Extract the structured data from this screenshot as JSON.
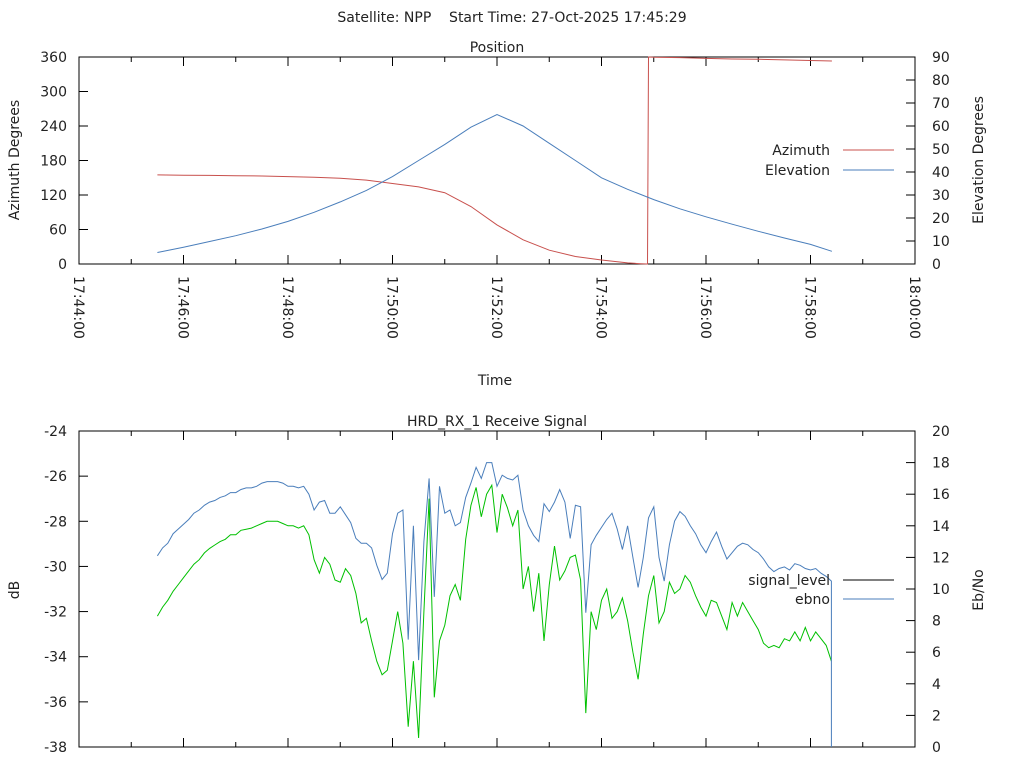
{
  "header": {
    "title": "Satellite: NPP    Start Time: 27-Oct-2025 17:45:29"
  },
  "colors": {
    "azimuth": "#c8504d",
    "elevation": "#4a7ebb",
    "signal_level_plot": "#00c000",
    "signal_level_legend": "#000000",
    "ebno": "#4a7ebb"
  },
  "chart_data": [
    {
      "type": "line",
      "title": "Position",
      "xlabel": "Time",
      "ylabel": "Azimuth Degrees",
      "y2label": "Elevation Degrees",
      "x_unit": "minutes after 17:44:00",
      "xlim": [
        0,
        16
      ],
      "ylim": [
        0,
        360
      ],
      "y2lim": [
        0,
        90
      ],
      "x_ticks": [
        "17:44:00",
        "17:46:00",
        "17:48:00",
        "17:50:00",
        "17:52:00",
        "17:54:00",
        "17:56:00",
        "17:58:00",
        "18:00:00"
      ],
      "y_ticks": [
        "0",
        "60",
        "120",
        "180",
        "240",
        "300",
        "360"
      ],
      "y2_ticks": [
        "0",
        "10",
        "20",
        "30",
        "40",
        "50",
        "60",
        "70",
        "80",
        "90"
      ],
      "legend": {
        "position": "right",
        "entries": [
          "Azimuth",
          "Elevation"
        ]
      },
      "series": [
        {
          "name": "Azimuth",
          "axis": "y",
          "x": [
            1.5,
            2,
            2.5,
            3,
            3.5,
            4,
            4.5,
            5,
            5.5,
            6,
            6.5,
            7,
            7.5,
            8,
            8.5,
            9,
            9.5,
            10,
            10.5,
            10.75,
            10.88,
            10.9,
            11,
            11.5,
            12,
            12.5,
            13,
            13.5,
            14,
            14.41
          ],
          "y": [
            155,
            154.5,
            154,
            153.5,
            153,
            152,
            151,
            149,
            146,
            140,
            134,
            124,
            100,
            68,
            42,
            24,
            13,
            7,
            2,
            0.5,
            0,
            360,
            359.5,
            359,
            357.5,
            356.5,
            356,
            355,
            354,
            353
          ]
        },
        {
          "name": "Elevation",
          "axis": "y2",
          "x": [
            1.5,
            2,
            2.5,
            3,
            3.5,
            4,
            4.5,
            5,
            5.5,
            6,
            6.5,
            7,
            7.5,
            8,
            8.5,
            9,
            9.5,
            10,
            10.5,
            11,
            11.5,
            12,
            12.5,
            13,
            13.5,
            14,
            14.41
          ],
          "y": [
            5,
            7.3,
            9.8,
            12.3,
            15.2,
            18.5,
            22.5,
            27,
            32,
            38,
            45,
            52,
            59.5,
            65,
            60,
            52.5,
            45,
            37.5,
            32.5,
            28,
            24,
            20.5,
            17.3,
            14.2,
            11.3,
            8.5,
            5.5
          ]
        }
      ]
    },
    {
      "type": "line",
      "title": "HRD_RX_1 Receive Signal",
      "xlabel": "",
      "ylabel": "dB",
      "y2label": "Eb/No",
      "x_unit": "minutes after 17:44:00",
      "xlim": [
        0,
        16
      ],
      "x_start": 1.5,
      "x_step": 0.1,
      "ylim": [
        -38,
        -24
      ],
      "y2lim": [
        0,
        20
      ],
      "y_ticks": [
        "-38",
        "-36",
        "-34",
        "-32",
        "-30",
        "-28",
        "-26",
        "-24"
      ],
      "y2_ticks": [
        "0",
        "2",
        "4",
        "6",
        "8",
        "10",
        "12",
        "14",
        "16",
        "18",
        "20"
      ],
      "legend": {
        "position": "right",
        "entries": [
          "signal_level",
          "ebno"
        ]
      },
      "series": [
        {
          "name": "signal_level",
          "axis": "y",
          "values": [
            -32.2,
            -31.8,
            -31.5,
            -31.1,
            -30.8,
            -30.5,
            -30.2,
            -29.9,
            -29.7,
            -29.4,
            -29.2,
            -29.05,
            -28.9,
            -28.8,
            -28.6,
            -28.6,
            -28.4,
            -28.35,
            -28.3,
            -28.2,
            -28.1,
            -28.0,
            -28.0,
            -28.0,
            -28.1,
            -28.2,
            -28.2,
            -28.3,
            -28.2,
            -28.6,
            -29.7,
            -30.3,
            -29.6,
            -29.9,
            -30.6,
            -30.7,
            -30.1,
            -30.4,
            -31.2,
            -32.5,
            -32.3,
            -33.3,
            -34.2,
            -34.8,
            -34.6,
            -33.3,
            -32.0,
            -33.4,
            -37.1,
            -34.2,
            -37.6,
            -32.0,
            -27.0,
            -35.8,
            -33.3,
            -32.6,
            -31.3,
            -30.8,
            -31.5,
            -28.8,
            -27.3,
            -26.5,
            -27.8,
            -26.8,
            -26.4,
            -28.5,
            -26.8,
            -27.4,
            -28.2,
            -27.5,
            -31.0,
            -30.0,
            -32.0,
            -30.3,
            -33.3,
            -30.8,
            -29.1,
            -30.6,
            -30.2,
            -29.6,
            -29.5,
            -30.6,
            -36.5,
            -32.0,
            -32.8,
            -31.5,
            -31.0,
            -32.3,
            -32.0,
            -31.4,
            -32.4,
            -33.8,
            -35.0,
            -33.0,
            -31.3,
            -30.4,
            -32.5,
            -32.0,
            -30.7,
            -31.2,
            -31.0,
            -30.4,
            -30.7,
            -31.3,
            -31.8,
            -32.2,
            -31.5,
            -31.6,
            -32.2,
            -32.8,
            -31.6,
            -32.2,
            -31.6,
            -32.0,
            -32.4,
            -32.8,
            -33.4,
            -33.6,
            -33.5,
            -33.6,
            -33.2,
            -33.3,
            -32.9,
            -33.3,
            -32.7,
            -33.3,
            -32.9,
            -33.2,
            -33.5,
            -34.2
          ]
        },
        {
          "name": "ebno",
          "axis": "y2",
          "values": [
            12.1,
            12.6,
            12.9,
            13.5,
            13.8,
            14.1,
            14.4,
            14.8,
            15.0,
            15.3,
            15.5,
            15.6,
            15.8,
            15.9,
            16.1,
            16.1,
            16.3,
            16.4,
            16.4,
            16.5,
            16.7,
            16.8,
            16.8,
            16.8,
            16.7,
            16.5,
            16.5,
            16.4,
            16.5,
            16.0,
            15.0,
            15.5,
            15.6,
            14.8,
            14.8,
            15.2,
            14.7,
            14.2,
            13.2,
            12.9,
            12.9,
            12.6,
            11.5,
            10.6,
            11.0,
            13.5,
            14.8,
            15.0,
            6.8,
            14.0,
            5.5,
            13.0,
            17.0,
            9.5,
            16.5,
            14.8,
            15.0,
            14.0,
            14.2,
            15.8,
            16.7,
            17.7,
            17.0,
            18.0,
            18.0,
            16.5,
            17.2,
            17.0,
            16.9,
            17.2,
            15.0,
            14.0,
            13.4,
            13.0,
            15.4,
            14.9,
            15.5,
            16.3,
            15.5,
            13.2,
            15.3,
            15.2,
            8.5,
            12.8,
            13.4,
            13.9,
            14.4,
            14.8,
            13.8,
            12.5,
            14.0,
            12.0,
            10.1,
            12.0,
            14.5,
            15.2,
            12.0,
            10.5,
            12.8,
            14.3,
            14.9,
            14.6,
            14.0,
            13.5,
            12.8,
            12.3,
            13.0,
            13.6,
            12.7,
            11.9,
            12.3,
            12.7,
            12.9,
            12.8,
            12.5,
            12.3,
            11.9,
            11.4,
            11.1,
            11.3,
            11.4,
            11.2,
            11.6,
            11.5,
            11.3,
            11.2,
            11.3,
            11.0,
            10.8,
            10.5,
            0
          ]
        }
      ]
    }
  ]
}
